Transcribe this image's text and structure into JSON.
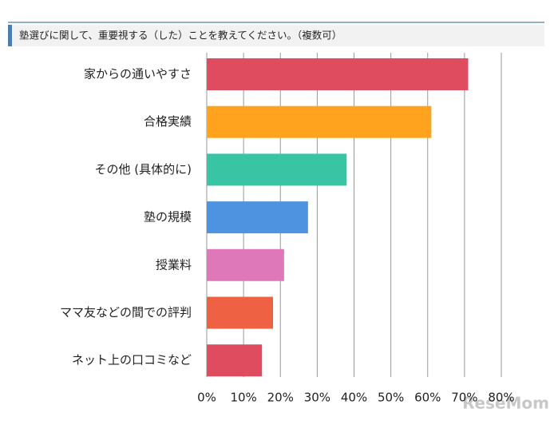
{
  "chart_data": {
    "type": "hbar",
    "title": "塾選びに関して、重要視する（した）ことを教えてください。（複数可）",
    "categories": [
      "家からの通いやすさ",
      "合格実績",
      "その他 (具体的に)",
      "塾の規模",
      "授業料",
      "ママ友などの間での評判",
      "ネット上の口コミなど"
    ],
    "values": [
      71,
      61,
      38,
      27.5,
      21,
      18,
      15
    ],
    "colors": [
      "#e04c5f",
      "#ffa21d",
      "#39c4a3",
      "#4d93e0",
      "#de78b8",
      "#ee6143",
      "#e04c5f"
    ],
    "xlim": [
      0,
      80
    ],
    "xticks": [
      {
        "value": 0,
        "label": "0%"
      },
      {
        "value": 10,
        "label": "10%"
      },
      {
        "value": 20,
        "label": "20%"
      },
      {
        "value": 30,
        "label": "30%"
      },
      {
        "value": 40,
        "label": "40%"
      },
      {
        "value": 50,
        "label": "50%"
      },
      {
        "value": 60,
        "label": "60%"
      },
      {
        "value": 70,
        "label": "70%"
      },
      {
        "value": 80,
        "label": "80%"
      }
    ],
    "grid": true,
    "watermark": "ReseMom"
  }
}
